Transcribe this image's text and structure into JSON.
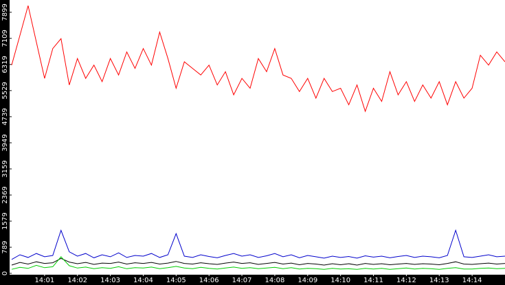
{
  "chart_data": {
    "type": "line",
    "x": [
      0,
      0.25,
      0.5,
      0.75,
      1,
      1.25,
      1.5,
      1.75,
      2,
      2.25,
      2.5,
      2.75,
      3,
      3.25,
      3.5,
      3.75,
      4,
      4.25,
      4.5,
      4.75,
      5,
      5.25,
      5.5,
      5.75,
      6,
      6.25,
      6.5,
      6.75,
      7,
      7.25,
      7.5,
      7.75,
      8,
      8.25,
      8.5,
      8.75,
      9,
      9.25,
      9.5,
      9.75,
      10,
      10.25,
      10.5,
      10.75,
      11,
      11.25,
      11.5,
      11.75,
      12,
      12.25,
      12.5,
      12.75,
      13,
      13.25,
      13.5,
      13.75,
      14,
      14.25,
      14.5,
      14.75,
      15
    ],
    "xlim": [
      0,
      15
    ],
    "xticks": [
      {
        "value": 1,
        "label": "14:01"
      },
      {
        "value": 2,
        "label": "14:02"
      },
      {
        "value": 3,
        "label": "14:03"
      },
      {
        "value": 4,
        "label": "14:04"
      },
      {
        "value": 5,
        "label": "14:05"
      },
      {
        "value": 6,
        "label": "14:06"
      },
      {
        "value": 7,
        "label": "14:07"
      },
      {
        "value": 8,
        "label": "14:08"
      },
      {
        "value": 9,
        "label": "14:09"
      },
      {
        "value": 10,
        "label": "14:10"
      },
      {
        "value": 11,
        "label": "14:11"
      },
      {
        "value": 12,
        "label": "14:12"
      },
      {
        "value": 13,
        "label": "14:13"
      },
      {
        "value": 14,
        "label": "14:14"
      }
    ],
    "ylim": [
      0,
      8270
    ],
    "yticks": [
      0,
      789,
      1579,
      2369,
      3159,
      3949,
      4739,
      5529,
      6319,
      7109,
      7899
    ],
    "series": [
      {
        "color": "#ff0000",
        "values": [
          6300,
          7200,
          8100,
          7000,
          5900,
          6800,
          7100,
          5700,
          6500,
          5900,
          6300,
          5800,
          6500,
          6000,
          6700,
          6200,
          6800,
          6300,
          7300,
          6500,
          5600,
          6400,
          6200,
          6000,
          6300,
          5700,
          6100,
          5400,
          5900,
          5600,
          6500,
          6100,
          6800,
          6000,
          5900,
          5500,
          5900,
          5300,
          5900,
          5500,
          5600,
          5100,
          5700,
          4900,
          5600,
          5200,
          6100,
          5400,
          5800,
          5200,
          5700,
          5300,
          5800,
          5100,
          5800,
          5300,
          5600,
          6600,
          6300,
          6700,
          6400
        ]
      },
      {
        "color": "#0000cc",
        "values": [
          420,
          560,
          480,
          600,
          500,
          540,
          1300,
          650,
          520,
          600,
          470,
          560,
          500,
          620,
          480,
          540,
          520,
          600,
          480,
          560,
          1200,
          520,
          480,
          560,
          510,
          470,
          540,
          600,
          520,
          560,
          480,
          530,
          600,
          500,
          560,
          470,
          540,
          500,
          460,
          520,
          480,
          510,
          460,
          530,
          490,
          520,
          470,
          510,
          540,
          480,
          520,
          500,
          470,
          540,
          1300,
          500,
          480,
          520,
          560,
          500,
          520
        ]
      },
      {
        "color": "#000000",
        "values": [
          250,
          330,
          280,
          350,
          300,
          320,
          450,
          340,
          290,
          330,
          270,
          310,
          300,
          340,
          280,
          320,
          300,
          330,
          280,
          310,
          360,
          300,
          280,
          320,
          290,
          270,
          310,
          340,
          300,
          320,
          270,
          300,
          330,
          280,
          310,
          260,
          300,
          280,
          250,
          290,
          260,
          290,
          250,
          300,
          270,
          290,
          260,
          280,
          300,
          270,
          290,
          280,
          260,
          300,
          350,
          280,
          270,
          290,
          310,
          280,
          300
        ]
      },
      {
        "color": "#00cc00",
        "values": [
          120,
          180,
          150,
          240,
          170,
          200,
          500,
          230,
          160,
          190,
          140,
          170,
          150,
          200,
          140,
          170,
          160,
          190,
          140,
          170,
          210,
          160,
          140,
          180,
          150,
          130,
          160,
          190,
          150,
          170,
          140,
          160,
          180,
          140,
          170,
          130,
          150,
          140,
          120,
          150,
          130,
          140,
          120,
          150,
          130,
          150,
          120,
          140,
          160,
          130,
          150,
          140,
          120,
          150,
          170,
          130,
          130,
          150,
          160,
          140,
          150
        ]
      }
    ]
  }
}
